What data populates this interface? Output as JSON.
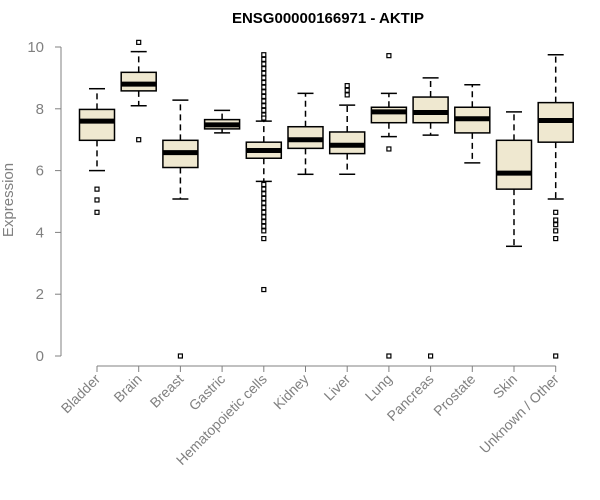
{
  "chart_data": {
    "type": "box",
    "title": "ENSG00000166971 - AKTIP",
    "ylabel": "Expression",
    "xlabel": "",
    "ylim": [
      0,
      10
    ],
    "yticks": [
      0,
      2,
      4,
      6,
      8,
      10
    ],
    "grid": false,
    "legend": "none",
    "box_fill": "#efe8d0",
    "categories": [
      "Bladder",
      "Brain",
      "Breast",
      "Gastric",
      "Hematopoietic cells",
      "Kidney",
      "Liver",
      "Lung",
      "Pancreas",
      "Prostate",
      "Skin",
      "Unknown / Other"
    ],
    "boxes": [
      {
        "category": "Bladder",
        "whisker_low": 6.0,
        "q1": 6.98,
        "median": 7.6,
        "q3": 7.98,
        "whisker_high": 8.65,
        "outliers": [
          5.4,
          5.05,
          4.65
        ]
      },
      {
        "category": "Brain",
        "whisker_low": 8.1,
        "q1": 8.58,
        "median": 8.8,
        "q3": 9.18,
        "whisker_high": 9.85,
        "outliers": [
          10.15,
          7.0
        ]
      },
      {
        "category": "Breast",
        "whisker_low": 5.08,
        "q1": 6.1,
        "median": 6.58,
        "q3": 6.98,
        "whisker_high": 8.28,
        "outliers": [
          0.0
        ]
      },
      {
        "category": "Gastric",
        "whisker_low": 7.22,
        "q1": 7.35,
        "median": 7.48,
        "q3": 7.65,
        "whisker_high": 7.95,
        "outliers": []
      },
      {
        "category": "Hematopoietic cells",
        "whisker_low": 5.65,
        "q1": 6.4,
        "median": 6.65,
        "q3": 6.92,
        "whisker_high": 7.6,
        "outliers": [
          9.75,
          9.6,
          9.45,
          9.3,
          9.15,
          9.0,
          8.85,
          8.7,
          8.55,
          8.4,
          8.25,
          8.1,
          7.95,
          7.8,
          7.7,
          5.55,
          5.4,
          5.25,
          5.1,
          4.95,
          4.8,
          4.65,
          4.5,
          4.35,
          4.2,
          4.05,
          3.8,
          2.15
        ]
      },
      {
        "category": "Kidney",
        "whisker_low": 5.88,
        "q1": 6.72,
        "median": 7.0,
        "q3": 7.42,
        "whisker_high": 8.5,
        "outliers": []
      },
      {
        "category": "Liver",
        "whisker_low": 5.88,
        "q1": 6.55,
        "median": 6.82,
        "q3": 7.25,
        "whisker_high": 8.12,
        "outliers": [
          8.75,
          8.6,
          8.45
        ]
      },
      {
        "category": "Lung",
        "whisker_low": 7.1,
        "q1": 7.55,
        "median": 7.9,
        "q3": 8.05,
        "whisker_high": 8.5,
        "outliers": [
          9.72,
          6.7,
          0.0
        ]
      },
      {
        "category": "Pancreas",
        "whisker_low": 7.15,
        "q1": 7.55,
        "median": 7.88,
        "q3": 8.38,
        "whisker_high": 9.0,
        "outliers": [
          0.0
        ]
      },
      {
        "category": "Prostate",
        "whisker_low": 6.25,
        "q1": 7.22,
        "median": 7.68,
        "q3": 8.05,
        "whisker_high": 8.78,
        "outliers": []
      },
      {
        "category": "Skin",
        "whisker_low": 3.55,
        "q1": 5.4,
        "median": 5.92,
        "q3": 6.98,
        "whisker_high": 7.9,
        "outliers": []
      },
      {
        "category": "Unknown / Other",
        "whisker_low": 5.08,
        "q1": 6.92,
        "median": 7.62,
        "q3": 8.2,
        "whisker_high": 9.75,
        "outliers": [
          4.65,
          4.4,
          4.25,
          4.05,
          3.8,
          0.0
        ]
      }
    ]
  }
}
